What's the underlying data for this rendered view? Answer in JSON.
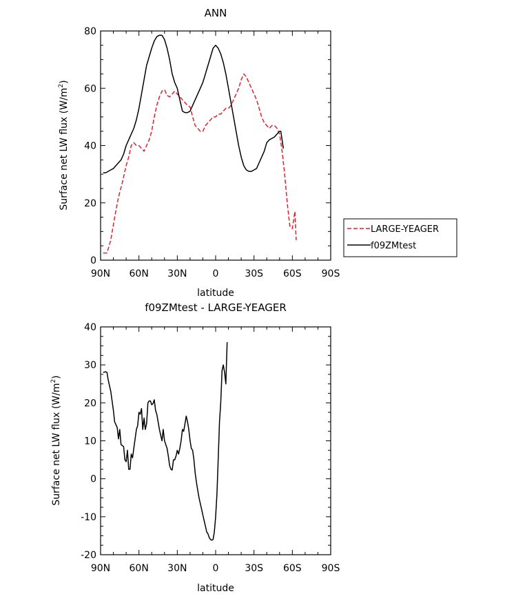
{
  "chart_data": [
    {
      "type": "line",
      "title": "ANN",
      "xlabel": "latitude",
      "ylabel": "Surface net LW flux (W/m",
      "ylabel_sup": "2",
      "ylabel_close": ")",
      "xlim": [
        90,
        -90
      ],
      "ylim": [
        0,
        80
      ],
      "xticks": [
        {
          "v": 90,
          "label": "90N"
        },
        {
          "v": 60,
          "label": "60N"
        },
        {
          "v": 30,
          "label": "30N"
        },
        {
          "v": 0,
          "label": "0"
        },
        {
          "v": -30,
          "label": "30S"
        },
        {
          "v": -60,
          "label": "60S"
        },
        {
          "v": -90,
          "label": "90S"
        }
      ],
      "yticks": [
        0,
        20,
        40,
        60,
        80
      ],
      "legend_position": "right",
      "series": [
        {
          "name": "LARGE-YEAGER",
          "color": "#e0202a",
          "dash": "dashed",
          "points": [
            [
              88,
              2.5
            ],
            [
              85,
              2.5
            ],
            [
              82,
              7
            ],
            [
              79,
              15
            ],
            [
              76,
              22
            ],
            [
              73,
              27
            ],
            [
              70,
              33
            ],
            [
              68,
              36
            ],
            [
              66,
              40
            ],
            [
              64,
              41
            ],
            [
              62,
              40
            ],
            [
              60,
              40
            ],
            [
              58,
              39
            ],
            [
              56,
              38
            ],
            [
              54,
              40
            ],
            [
              52,
              42
            ],
            [
              50,
              45
            ],
            [
              48,
              50
            ],
            [
              46,
              54
            ],
            [
              44,
              57
            ],
            [
              42,
              59
            ],
            [
              40,
              59.5
            ],
            [
              38,
              57.5
            ],
            [
              36,
              57
            ],
            [
              34,
              58
            ],
            [
              32,
              59
            ],
            [
              30,
              58
            ],
            [
              28,
              57
            ],
            [
              26,
              56
            ],
            [
              24,
              55
            ],
            [
              22,
              54
            ],
            [
              20,
              53.5
            ],
            [
              18,
              50
            ],
            [
              16,
              47
            ],
            [
              14,
              46
            ],
            [
              12,
              45
            ],
            [
              10,
              45
            ],
            [
              8,
              47
            ],
            [
              6,
              48
            ],
            [
              4,
              49
            ],
            [
              2,
              50
            ],
            [
              0,
              50
            ],
            [
              -2,
              51
            ],
            [
              -4,
              51
            ],
            [
              -6,
              52
            ],
            [
              -8,
              53
            ],
            [
              -10,
              53
            ],
            [
              -12,
              54
            ],
            [
              -14,
              56
            ],
            [
              -16,
              58
            ],
            [
              -18,
              60
            ],
            [
              -20,
              63
            ],
            [
              -22,
              65
            ],
            [
              -24,
              64
            ],
            [
              -26,
              62
            ],
            [
              -28,
              60
            ],
            [
              -30,
              58
            ],
            [
              -32,
              56
            ],
            [
              -34,
              53
            ],
            [
              -36,
              50
            ],
            [
              -38,
              48
            ],
            [
              -40,
              47
            ],
            [
              -42,
              46
            ],
            [
              -44,
              47
            ],
            [
              -46,
              47
            ],
            [
              -48,
              46
            ],
            [
              -50,
              44
            ],
            [
              -52,
              38
            ],
            [
              -54,
              30
            ],
            [
              -56,
              20
            ],
            [
              -58,
              12
            ],
            [
              -60,
              11
            ],
            [
              -61,
              14
            ],
            [
              -62,
              17
            ],
            [
              -63,
              7
            ]
          ]
        },
        {
          "name": "f09ZMtest",
          "color": "#000000",
          "dash": "solid",
          "points": [
            [
              88,
              30.5
            ],
            [
              86,
              30.5
            ],
            [
              84,
              31
            ],
            [
              82,
              31.5
            ],
            [
              80,
              32
            ],
            [
              78,
              33
            ],
            [
              76,
              34
            ],
            [
              74,
              35
            ],
            [
              72,
              37
            ],
            [
              70,
              40
            ],
            [
              68,
              42
            ],
            [
              66,
              44
            ],
            [
              64,
              46
            ],
            [
              62,
              49
            ],
            [
              60,
              53
            ],
            [
              58,
              58
            ],
            [
              56,
              63
            ],
            [
              54,
              68
            ],
            [
              52,
              71
            ],
            [
              50,
              74
            ],
            [
              48,
              76.5
            ],
            [
              46,
              78
            ],
            [
              44,
              78.5
            ],
            [
              42,
              78.5
            ],
            [
              40,
              77
            ],
            [
              38,
              74
            ],
            [
              36,
              70
            ],
            [
              34,
              65
            ],
            [
              32,
              62
            ],
            [
              30,
              60
            ],
            [
              28,
              56
            ],
            [
              26,
              52
            ],
            [
              24,
              51.5
            ],
            [
              22,
              51.5
            ],
            [
              20,
              52
            ],
            [
              18,
              54
            ],
            [
              16,
              56
            ],
            [
              14,
              58
            ],
            [
              12,
              60
            ],
            [
              10,
              62
            ],
            [
              8,
              65
            ],
            [
              6,
              68
            ],
            [
              4,
              71
            ],
            [
              2,
              74
            ],
            [
              0,
              75
            ],
            [
              -2,
              74
            ],
            [
              -4,
              72
            ],
            [
              -6,
              69
            ],
            [
              -8,
              65
            ],
            [
              -10,
              60
            ],
            [
              -12,
              55
            ],
            [
              -14,
              50
            ],
            [
              -16,
              45
            ],
            [
              -18,
              40
            ],
            [
              -20,
              36
            ],
            [
              -22,
              33
            ],
            [
              -24,
              31.5
            ],
            [
              -26,
              31
            ],
            [
              -28,
              31
            ],
            [
              -30,
              31.5
            ],
            [
              -32,
              32
            ],
            [
              -34,
              34
            ],
            [
              -36,
              36
            ],
            [
              -38,
              38
            ],
            [
              -40,
              41
            ],
            [
              -42,
              42
            ],
            [
              -44,
              42.5
            ],
            [
              -46,
              43
            ],
            [
              -48,
              44
            ],
            [
              -50,
              45
            ],
            [
              -51,
              45
            ],
            [
              -53,
              39
            ]
          ]
        }
      ]
    },
    {
      "type": "line",
      "title": "f09ZMtest - LARGE-YEAGER",
      "xlabel": "latitude",
      "ylabel": "Surface net LW flux (W/m",
      "ylabel_sup": "2",
      "ylabel_close": ")",
      "xlim": [
        90,
        -90
      ],
      "ylim": [
        -20,
        40
      ],
      "xticks": [
        {
          "v": 90,
          "label": "90N"
        },
        {
          "v": 60,
          "label": "60N"
        },
        {
          "v": 30,
          "label": "30N"
        },
        {
          "v": 0,
          "label": "0"
        },
        {
          "v": -30,
          "label": "30S"
        },
        {
          "v": -60,
          "label": "60S"
        },
        {
          "v": -90,
          "label": "90S"
        }
      ],
      "yticks": [
        -20,
        -10,
        0,
        10,
        20,
        30,
        40
      ],
      "series": [
        {
          "color": "#000000",
          "dash": "solid",
          "points": [
            [
              88,
              28
            ],
            [
              86,
              28.2
            ],
            [
              85,
              28
            ],
            [
              84,
              26
            ],
            [
              82,
              23
            ],
            [
              80,
              18
            ],
            [
              79,
              15
            ],
            [
              77,
              13.5
            ],
            [
              76,
              10.5
            ],
            [
              75,
              13
            ],
            [
              74,
              9
            ],
            [
              72,
              8.5
            ],
            [
              71,
              5
            ],
            [
              70,
              4.5
            ],
            [
              69,
              7.5
            ],
            [
              68,
              2.5
            ],
            [
              67,
              2.5
            ],
            [
              66,
              6.5
            ],
            [
              65,
              5.5
            ],
            [
              64,
              8
            ],
            [
              62,
              13
            ],
            [
              61,
              14
            ],
            [
              60,
              17.5
            ],
            [
              59,
              17
            ],
            [
              58,
              18.5
            ],
            [
              57,
              13
            ],
            [
              56,
              16
            ],
            [
              55,
              13
            ],
            [
              54,
              14.5
            ],
            [
              53,
              20
            ],
            [
              52,
              20.5
            ],
            [
              51,
              20.5
            ],
            [
              50,
              19.5
            ],
            [
              49,
              19.8
            ],
            [
              48,
              20.8
            ],
            [
              47,
              18
            ],
            [
              46,
              17
            ],
            [
              45,
              15
            ],
            [
              44,
              13
            ],
            [
              43,
              11.5
            ],
            [
              42,
              10
            ],
            [
              41,
              13
            ],
            [
              40,
              10
            ],
            [
              38,
              8
            ],
            [
              37,
              6
            ],
            [
              36,
              3.5
            ],
            [
              35,
              2.5
            ],
            [
              34,
              2.3
            ],
            [
              33,
              5
            ],
            [
              32,
              5
            ],
            [
              31,
              6
            ],
            [
              30,
              7.5
            ],
            [
              29,
              6.5
            ],
            [
              28,
              8
            ],
            [
              27,
              10
            ],
            [
              26,
              13
            ],
            [
              25,
              12.5
            ],
            [
              24,
              14.5
            ],
            [
              23,
              16.5
            ],
            [
              22,
              15
            ],
            [
              21,
              13
            ],
            [
              20,
              10
            ],
            [
              19,
              8
            ],
            [
              18,
              7.5
            ],
            [
              17,
              5
            ],
            [
              16,
              1.5
            ],
            [
              15,
              -1
            ],
            [
              14,
              -3
            ],
            [
              13,
              -5
            ],
            [
              12,
              -6.5
            ],
            [
              11,
              -8
            ],
            [
              10,
              -9.5
            ],
            [
              9,
              -11
            ],
            [
              8,
              -12.5
            ],
            [
              7,
              -14
            ],
            [
              6,
              -14.5
            ],
            [
              5,
              -15.5
            ],
            [
              4,
              -16
            ],
            [
              3,
              -16.2
            ],
            [
              2,
              -16
            ],
            [
              1,
              -14
            ],
            [
              0,
              -10
            ],
            [
              -1,
              -4
            ],
            [
              -2,
              5
            ],
            [
              -3,
              15
            ],
            [
              -4,
              20
            ],
            [
              -5,
              28.5
            ],
            [
              -6,
              30
            ],
            [
              -7,
              28
            ],
            [
              -8,
              25
            ],
            [
              -9,
              36
            ]
          ],
          "x_note": ""
        }
      ]
    }
  ]
}
